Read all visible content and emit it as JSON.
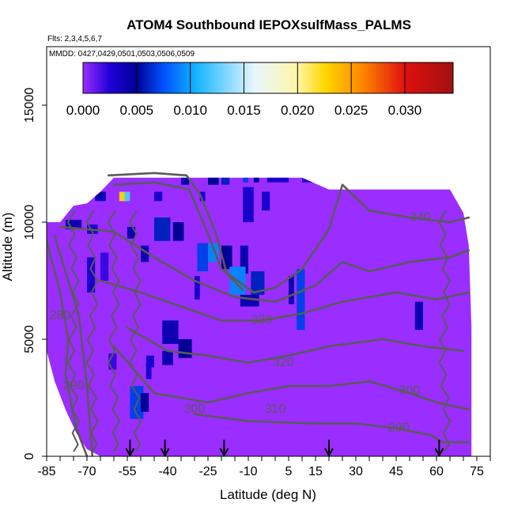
{
  "chart_data": {
    "type": "heatmap",
    "title": "ATOM4 Southbound IEPOXsulfMass_PALMS",
    "subtitle_flights": "Flts: 2,3,4,5,6,7",
    "subtitle_dates": "MMDD: 0427,0429,0501,0503,0506,0509",
    "xlabel": "Latitude (deg N)",
    "ylabel": "Altitude (m)",
    "xlim": [
      -85,
      80
    ],
    "ylim": [
      0,
      17500
    ],
    "x_ticks": [
      -85,
      -70,
      -55,
      -40,
      -25,
      -10,
      5,
      15,
      30,
      45,
      60,
      75
    ],
    "y_ticks": [
      0,
      5000,
      10000,
      15000
    ],
    "colorbar": {
      "min": 0.0,
      "max": 0.0345,
      "tick_values": [
        0.0,
        0.005,
        0.01,
        0.015,
        0.02,
        0.025,
        0.03
      ],
      "tick_labels": [
        "0.000",
        "0.005",
        "0.010",
        "0.015",
        "0.020",
        "0.025",
        "0.030"
      ],
      "stops": [
        {
          "v": 0.0,
          "c": "#9a2dff"
        },
        {
          "v": 0.0025,
          "c": "#2000d8"
        },
        {
          "v": 0.005,
          "c": "#000095"
        },
        {
          "v": 0.0075,
          "c": "#0050ff"
        },
        {
          "v": 0.0105,
          "c": "#12b4ff"
        },
        {
          "v": 0.016,
          "c": "#e8f6ff"
        },
        {
          "v": 0.02,
          "c": "#fff6a8"
        },
        {
          "v": 0.0225,
          "c": "#ffd800"
        },
        {
          "v": 0.026,
          "c": "#ff8800"
        },
        {
          "v": 0.03,
          "c": "#e01010"
        },
        {
          "v": 0.0345,
          "c": "#a01010"
        }
      ]
    },
    "background_value": 0.0,
    "envelope": [
      {
        "lat": -85,
        "top": 10000
      },
      {
        "lat": -80,
        "top": 10000
      },
      {
        "lat": -75,
        "top": 10700
      },
      {
        "lat": -70,
        "top": 10800
      },
      {
        "lat": -65,
        "top": 11300
      },
      {
        "lat": -60,
        "top": 11900
      },
      {
        "lat": -55,
        "top": 11900
      },
      {
        "lat": -45,
        "top": 11900
      },
      {
        "lat": -35,
        "top": 11900
      },
      {
        "lat": -25,
        "top": 11900
      },
      {
        "lat": -10,
        "top": 11900
      },
      {
        "lat": 0,
        "top": 11900
      },
      {
        "lat": 10,
        "top": 11900
      },
      {
        "lat": 20,
        "top": 11400
      },
      {
        "lat": 30,
        "top": 11400
      },
      {
        "lat": 45,
        "top": 11400
      },
      {
        "lat": 60,
        "top": 11400
      },
      {
        "lat": 65,
        "top": 11400
      },
      {
        "lat": 70,
        "top": 10400
      },
      {
        "lat": 72,
        "top": 9000
      },
      {
        "lat": 73,
        "top": 5500
      },
      {
        "lat": 73,
        "top": 0
      }
    ],
    "envelope_bottom": [
      {
        "lat": -85,
        "alt": 4500
      },
      {
        "lat": -82,
        "alt": 3200
      },
      {
        "lat": -78,
        "alt": 2000
      },
      {
        "lat": -74,
        "alt": 1000
      },
      {
        "lat": -70,
        "alt": 300
      },
      {
        "lat": -65,
        "alt": 0
      }
    ],
    "cells": [
      {
        "lat": -35,
        "alt": 11600,
        "w": 3,
        "h": 500,
        "v": 0.004
      },
      {
        "lat": -25,
        "alt": 11600,
        "w": 4,
        "h": 500,
        "v": 0.005
      },
      {
        "lat": -20,
        "alt": 11600,
        "w": 3,
        "h": 500,
        "v": 0.006
      },
      {
        "lat": -12,
        "alt": 11700,
        "w": 2,
        "h": 400,
        "v": 0.007
      },
      {
        "lat": -8,
        "alt": 11700,
        "w": 2,
        "h": 400,
        "v": 0.005
      },
      {
        "lat": -3,
        "alt": 11700,
        "w": 8,
        "h": 400,
        "v": 0.003
      },
      {
        "lat": 10,
        "alt": 11700,
        "w": 6,
        "h": 400,
        "v": 0.003
      },
      {
        "lat": 18,
        "alt": 11700,
        "w": 3,
        "h": 400,
        "v": 0.003
      },
      {
        "lat": -67,
        "alt": 10900,
        "w": 4,
        "h": 400,
        "v": 0.004
      },
      {
        "lat": -58,
        "alt": 10900,
        "w": 3,
        "h": 400,
        "v": 0.023
      },
      {
        "lat": -56,
        "alt": 10900,
        "w": 2,
        "h": 400,
        "v": 0.012
      },
      {
        "lat": -45,
        "alt": 10900,
        "w": 3,
        "h": 400,
        "v": 0.003
      },
      {
        "lat": -28,
        "alt": 10900,
        "w": 2,
        "h": 400,
        "v": 0.003
      },
      {
        "lat": -12,
        "alt": 10000,
        "w": 4,
        "h": 1500,
        "v": 0.003
      },
      {
        "lat": -5,
        "alt": 10500,
        "w": 3,
        "h": 800,
        "v": 0.003
      },
      {
        "lat": -78,
        "alt": 9700,
        "w": 6,
        "h": 400,
        "v": 0.004
      },
      {
        "lat": -70,
        "alt": 9500,
        "w": 4,
        "h": 400,
        "v": 0.003
      },
      {
        "lat": -45,
        "alt": 9200,
        "w": 6,
        "h": 1000,
        "v": 0.006
      },
      {
        "lat": -38,
        "alt": 9200,
        "w": 4,
        "h": 800,
        "v": 0.005
      },
      {
        "lat": -50,
        "alt": 8300,
        "w": 3,
        "h": 700,
        "v": 0.004
      },
      {
        "lat": -55,
        "alt": 9300,
        "w": 3,
        "h": 500,
        "v": 0.004
      },
      {
        "lat": -29,
        "alt": 7900,
        "w": 4,
        "h": 1200,
        "v": 0.007
      },
      {
        "lat": -25,
        "alt": 8300,
        "w": 4,
        "h": 800,
        "v": 0.009
      },
      {
        "lat": -20,
        "alt": 8000,
        "w": 4,
        "h": 1000,
        "v": 0.005
      },
      {
        "lat": -13,
        "alt": 7800,
        "w": 3,
        "h": 1200,
        "v": 0.004
      },
      {
        "lat": -17,
        "alt": 6900,
        "w": 6,
        "h": 1200,
        "v": 0.009
      },
      {
        "lat": -9,
        "alt": 6900,
        "w": 5,
        "h": 1000,
        "v": 0.006
      },
      {
        "lat": -13,
        "alt": 6400,
        "w": 7,
        "h": 500,
        "v": 0.004
      },
      {
        "lat": -30,
        "alt": 6700,
        "w": 2,
        "h": 1000,
        "v": 0.003
      },
      {
        "lat": 8,
        "alt": 5400,
        "w": 3,
        "h": 2600,
        "v": 0.007
      },
      {
        "lat": 5,
        "alt": 6500,
        "w": 2,
        "h": 1200,
        "v": 0.004
      },
      {
        "lat": 52,
        "alt": 5400,
        "w": 3,
        "h": 1200,
        "v": 0.004
      },
      {
        "lat": -70,
        "alt": 7000,
        "w": 3,
        "h": 1500,
        "v": 0.003
      },
      {
        "lat": -65,
        "alt": 7500,
        "w": 3,
        "h": 1200,
        "v": 0.002
      },
      {
        "lat": -42,
        "alt": 4800,
        "w": 6,
        "h": 1000,
        "v": 0.004
      },
      {
        "lat": -36,
        "alt": 4200,
        "w": 5,
        "h": 800,
        "v": 0.005
      },
      {
        "lat": -42,
        "alt": 3900,
        "w": 4,
        "h": 600,
        "v": 0.004
      },
      {
        "lat": -48,
        "alt": 3800,
        "w": 3,
        "h": 500,
        "v": 0.003
      },
      {
        "lat": -54,
        "alt": 1600,
        "w": 5,
        "h": 1400,
        "v": 0.007
      },
      {
        "lat": -50,
        "alt": 1900,
        "w": 3,
        "h": 800,
        "v": 0.005
      },
      {
        "lat": -48,
        "alt": 3300,
        "w": 2,
        "h": 700,
        "v": 0.003
      },
      {
        "lat": -62,
        "alt": 3700,
        "w": 3,
        "h": 700,
        "v": 0.002
      }
    ],
    "isotherms": [
      {
        "label": "280",
        "label_lat": -80,
        "label_alt": 6000,
        "points": [
          [
            -85,
            9200
          ],
          [
            -80,
            7000
          ],
          [
            -77,
            5000
          ],
          [
            -78,
            3500
          ],
          [
            -74,
            1200
          ],
          [
            -70,
            0
          ]
        ]
      },
      {
        "label": "290",
        "label_lat": 46,
        "label_alt": 1200,
        "points": [
          [
            -30,
            1800
          ],
          [
            -10,
            1500
          ],
          [
            15,
            1400
          ],
          [
            30,
            1400
          ],
          [
            45,
            1200
          ],
          [
            58,
            900
          ],
          [
            62,
            600
          ],
          [
            72,
            600
          ]
        ]
      },
      {
        "label": "290",
        "label_lat": -75,
        "label_alt": 3000,
        "points": [
          [
            -82,
            9400
          ],
          [
            -73,
            6000
          ],
          [
            -70,
            3000
          ],
          [
            -68,
            0
          ]
        ]
      },
      {
        "label": "300",
        "label_lat": -30,
        "label_alt": 2000,
        "points": [
          [
            -60,
            4700
          ],
          [
            -45,
            2700
          ],
          [
            -25,
            2300
          ],
          [
            -10,
            2700
          ],
          [
            5,
            3000
          ],
          [
            20,
            3000
          ],
          [
            35,
            3200
          ],
          [
            50,
            2700
          ],
          [
            60,
            2300
          ],
          [
            72,
            2000
          ]
        ]
      },
      {
        "label": "300",
        "label_lat": 50,
        "label_alt": 2800,
        "points": []
      },
      {
        "label": "310",
        "label_lat": 0,
        "label_alt": 2000,
        "points": [
          [
            -55,
            5500
          ],
          [
            -40,
            4500
          ],
          [
            -25,
            4300
          ],
          [
            -10,
            4000
          ],
          [
            5,
            4300
          ],
          [
            20,
            4700
          ],
          [
            40,
            5000
          ],
          [
            55,
            4700
          ],
          [
            70,
            4500
          ]
        ]
      },
      {
        "label": "320",
        "label_lat": 3,
        "label_alt": 4000,
        "points": [
          [
            -65,
            7500
          ],
          [
            -50,
            7000
          ],
          [
            -35,
            6400
          ],
          [
            -20,
            5800
          ],
          [
            -5,
            5800
          ],
          [
            10,
            6100
          ],
          [
            25,
            6600
          ],
          [
            45,
            7000
          ],
          [
            60,
            6700
          ],
          [
            72,
            7000
          ]
        ]
      },
      {
        "label": "330",
        "label_lat": -5,
        "label_alt": 5800,
        "points": [
          [
            -80,
            9800
          ],
          [
            -60,
            9600
          ],
          [
            -45,
            8500
          ],
          [
            -30,
            7500
          ],
          [
            -15,
            6800
          ],
          [
            0,
            6600
          ],
          [
            15,
            7300
          ],
          [
            25,
            8300
          ],
          [
            35,
            7900
          ],
          [
            50,
            8300
          ],
          [
            65,
            8500
          ],
          [
            72,
            8800
          ]
        ]
      },
      {
        "label": "340",
        "label_lat": 54,
        "label_alt": 10200,
        "points": [
          [
            -60,
            11600
          ],
          [
            -45,
            11700
          ],
          [
            -32,
            11400
          ],
          [
            -25,
            9500
          ],
          [
            -20,
            8000
          ],
          [
            -8,
            7000
          ],
          [
            0,
            7200
          ],
          [
            10,
            8000
          ],
          [
            20,
            9700
          ],
          [
            25,
            11600
          ],
          [
            35,
            10500
          ],
          [
            50,
            10200
          ],
          [
            65,
            10000
          ],
          [
            72,
            10200
          ]
        ]
      },
      {
        "label": "",
        "label_lat": 0,
        "label_alt": 0,
        "points": [
          [
            -62,
            12000
          ],
          [
            -45,
            12100
          ],
          [
            -33,
            12000
          ],
          [
            -28,
            11200
          ],
          [
            -22,
            9500
          ],
          [
            -18,
            7800
          ],
          [
            -12,
            7100
          ]
        ]
      }
    ],
    "flight_arrows_lat": [
      -54,
      -41,
      -19,
      20,
      61
    ],
    "flight_path_lat_scribbles": [
      -75,
      -68,
      -60,
      -52,
      63
    ]
  }
}
